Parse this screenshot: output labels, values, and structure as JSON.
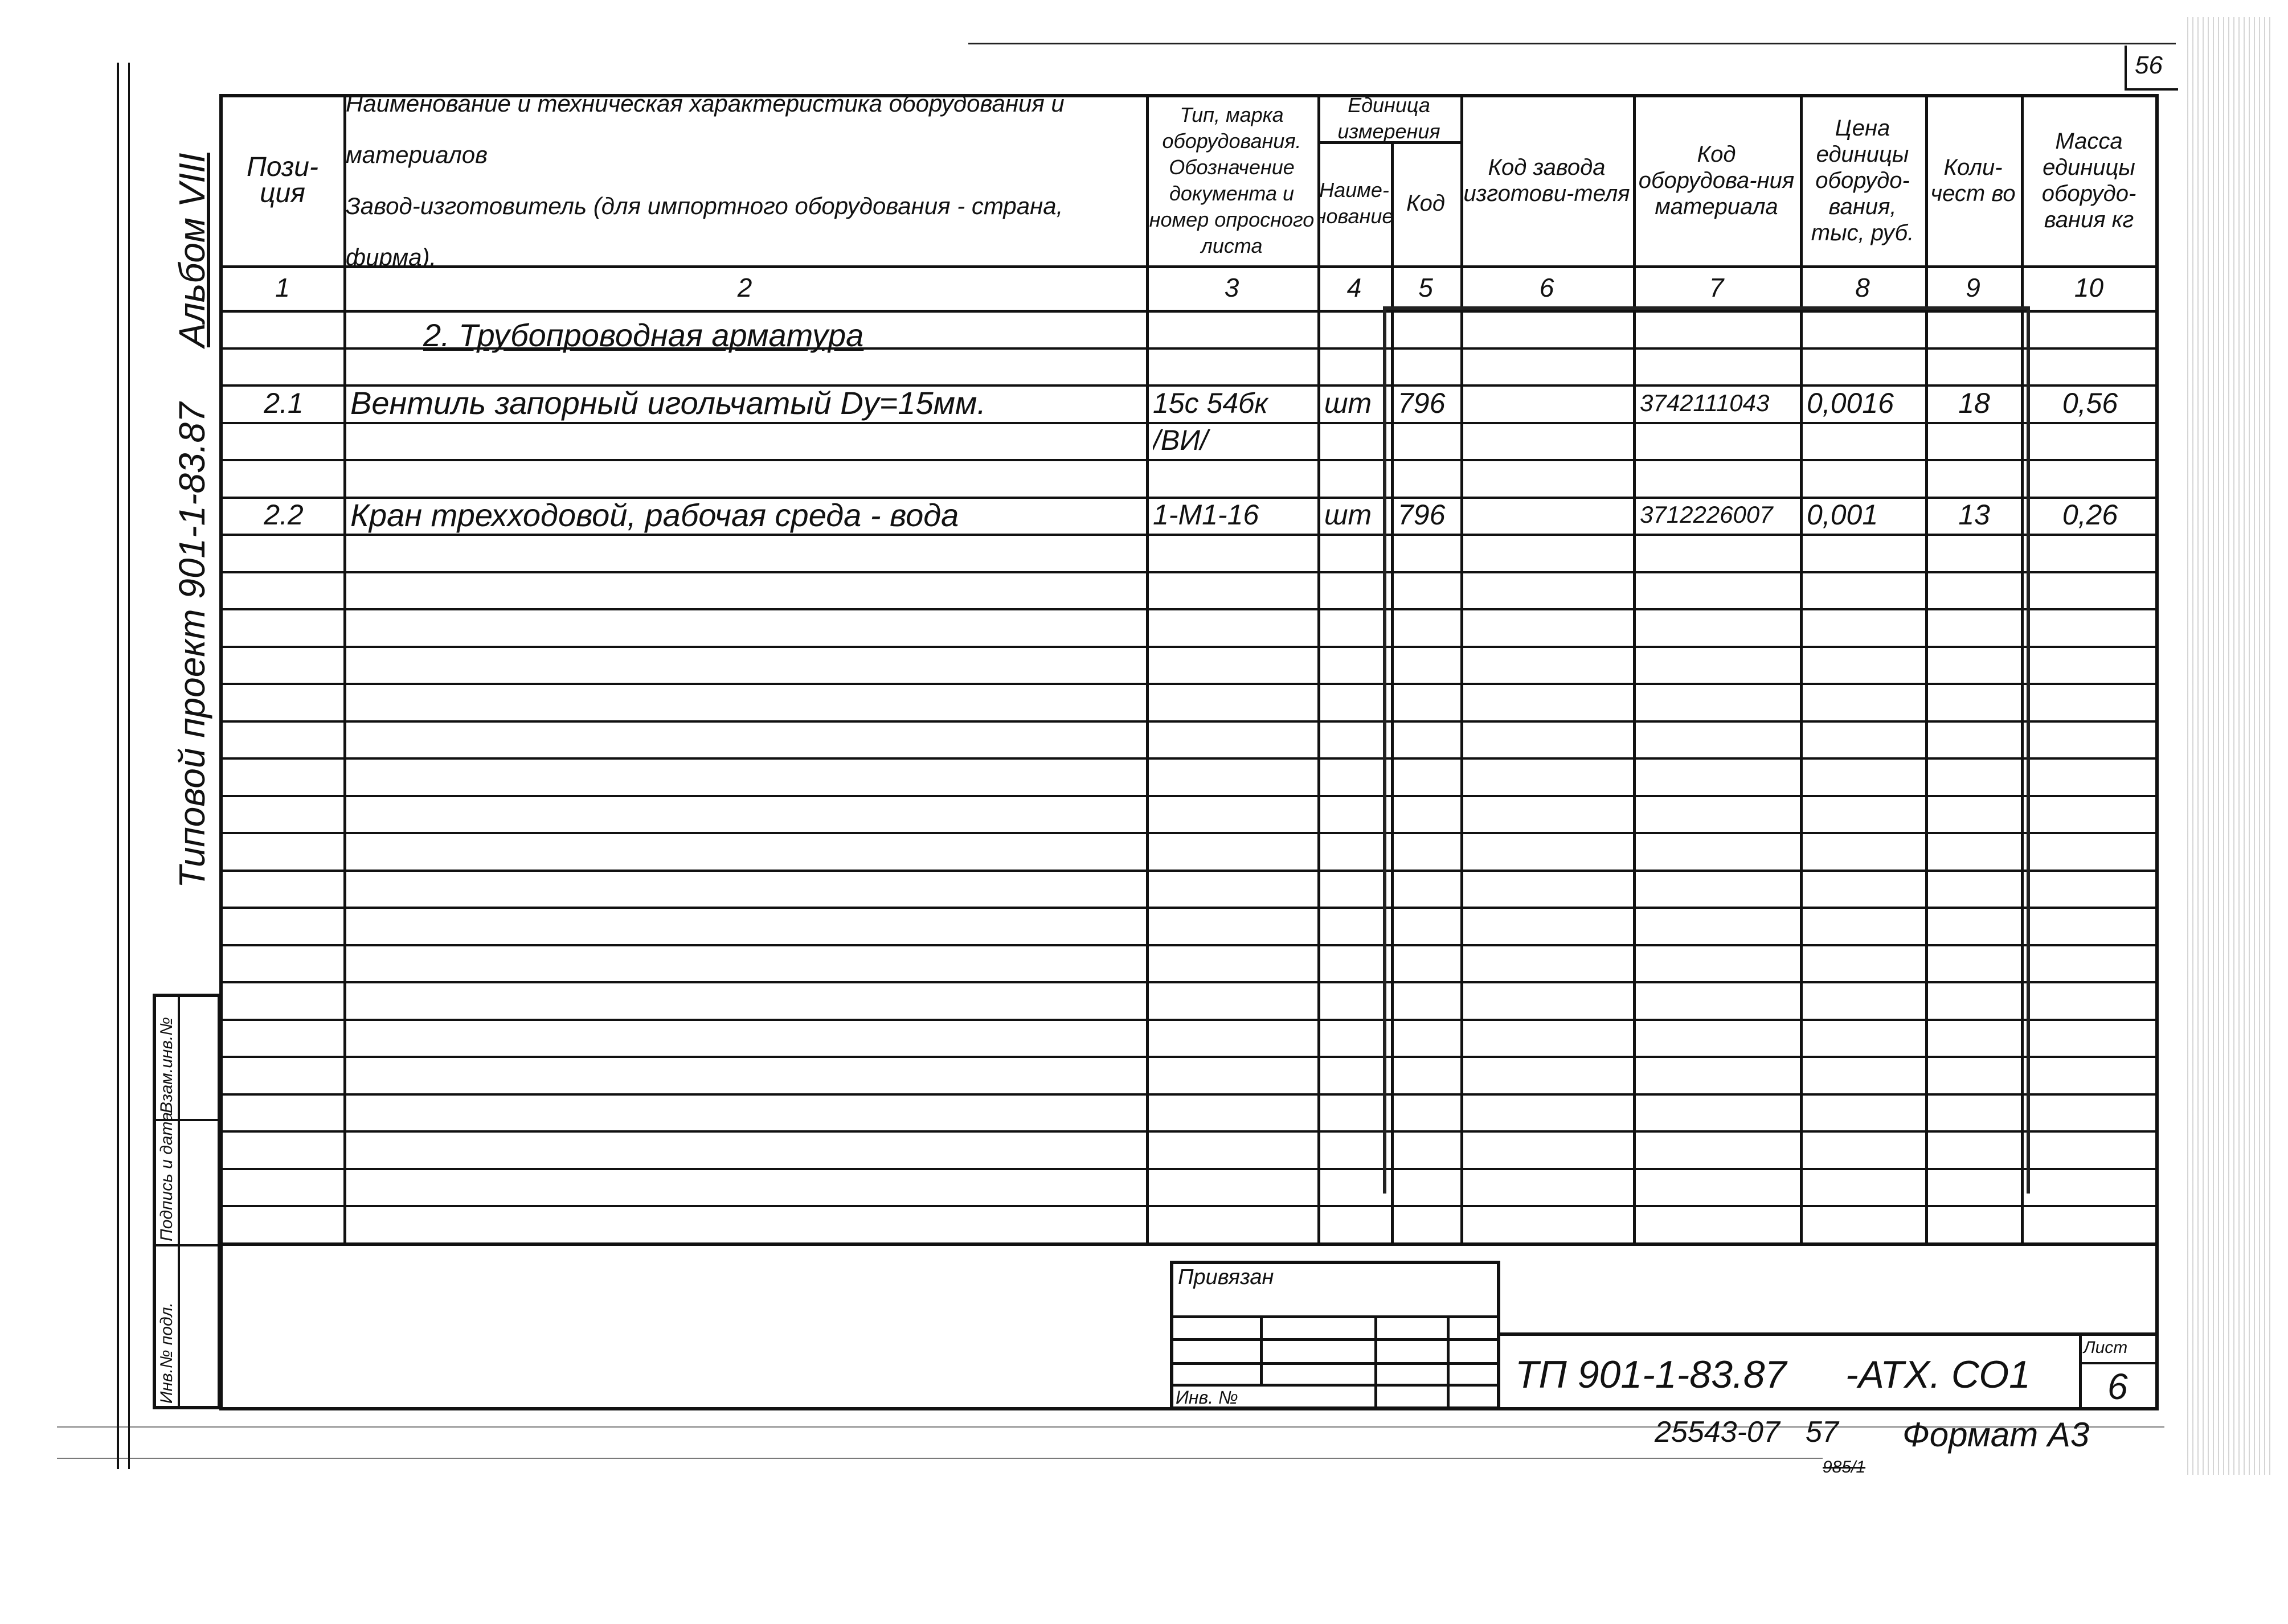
{
  "page_number": "56",
  "side_title": "Типовой проект 901-1-83.87",
  "album": "Альбом VIII",
  "table": {
    "headers": [
      {
        "label": "Пози-\nция"
      },
      {
        "label": "Наименование и техническая характеристика оборудования и материалов\nЗавод-изготовитель (для импортного оборудования - страна, фирма)."
      },
      {
        "label": "Тип, марка оборудования. Обозначение документа и номер опросного листа"
      },
      {
        "label": "Наиме-нование"
      },
      {
        "label": "Код"
      },
      {
        "label": "Код завода изготови-теля"
      },
      {
        "label": "Код оборудова-ния материала"
      },
      {
        "label": "Цена единицы оборудо-вания, тыс, руб."
      },
      {
        "label": "Коли-чест во"
      },
      {
        "label": "Масса единицы оборудо-вания кг"
      }
    ],
    "unit_group_header": "Единица измерения",
    "column_numbers": [
      "1",
      "2",
      "3",
      "4",
      "5",
      "6",
      "7",
      "8",
      "9",
      "10"
    ],
    "section_heading": "2. Трубопроводная арматура",
    "rows": [
      {
        "pos": "2.1",
        "name": "Вентиль запорный игольчатый  Dy=15мм.",
        "type": "15с 54бк",
        "unit_name": "шт",
        "unit_code": "796",
        "factory_code": "",
        "equipment_code": "3742111043",
        "price": "0,0016",
        "qty": "18",
        "mass": "0,56"
      },
      {
        "pos": "",
        "name": "",
        "type": "/ВИ/",
        "unit_name": "",
        "unit_code": "",
        "factory_code": "",
        "equipment_code": "",
        "price": "",
        "qty": "",
        "mass": ""
      },
      {
        "pos": "2.2",
        "name": "Кран трехходовой, рабочая среда - вода",
        "type": "1-М1-16",
        "unit_name": "шт",
        "unit_code": "796",
        "factory_code": "",
        "equipment_code": "3712226007",
        "price": "0,001",
        "qty": "13",
        "mass": "0,26"
      }
    ]
  },
  "stamp": {
    "inv_podl": "Инв.№ подл.",
    "podpis": "Подпись и дата",
    "vzam": "Взам.инв.№"
  },
  "title_block": {
    "privyazan": "Привязан",
    "inv_no": "Инв. №",
    "designation": "ТП 901-1-83.87",
    "code": "-АТХ. СО1",
    "sheet_label": "Лист",
    "sheet_number": "6"
  },
  "footer": {
    "order": "25543-07",
    "page": "57",
    "format": "Формат А3",
    "mark": "985/1"
  }
}
